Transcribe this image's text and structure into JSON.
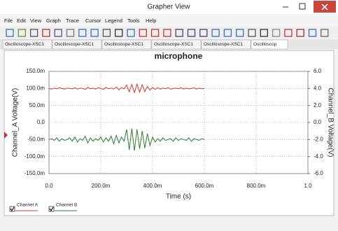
{
  "window": {
    "title": "Grapher View"
  },
  "menu": [
    "File",
    "Edit",
    "View",
    "Graph",
    "Trace",
    "Cursor",
    "Legend",
    "Tools",
    "Help"
  ],
  "tabs": [
    "Oscilloscope-XSC1",
    "Oscilloscope-XSC1",
    "Oscilloscope-XSC1",
    "Oscilloscope-XSC1",
    "Oscilloscope-XSC1",
    "Oscilloscop"
  ],
  "chart_data": {
    "type": "line",
    "title": "microphone",
    "x_label": "Time (s)",
    "y_label": "Channel_A Voltage(V)",
    "y2_label": "Channel_B Voltage(V)",
    "x": [
      0,
      0.01,
      0.02,
      0.03,
      0.04,
      0.05,
      0.06,
      0.07,
      0.08,
      0.09,
      0.1,
      0.11,
      0.12,
      0.13,
      0.14,
      0.15,
      0.16,
      0.17,
      0.18,
      0.19,
      0.2,
      0.21,
      0.22,
      0.23,
      0.24,
      0.25,
      0.26,
      0.27,
      0.28,
      0.29,
      0.3,
      0.31,
      0.32,
      0.33,
      0.34,
      0.35,
      0.36,
      0.37,
      0.38,
      0.39,
      0.4,
      0.41,
      0.42,
      0.43,
      0.44,
      0.45,
      0.46,
      0.47,
      0.48,
      0.49,
      0.5,
      0.51,
      0.52,
      0.53,
      0.54,
      0.55,
      0.56,
      0.57,
      0.58,
      0.59,
      0.6
    ],
    "series": [
      {
        "name": "Channel A",
        "color": "#d03a2c",
        "values": [
          0.1,
          0.098,
          0.101,
          0.099,
          0.102,
          0.1,
          0.098,
          0.101,
          0.1,
          0.099,
          0.102,
          0.098,
          0.101,
          0.1,
          0.097,
          0.103,
          0.099,
          0.101,
          0.098,
          0.102,
          0.1,
          0.097,
          0.103,
          0.099,
          0.101,
          0.098,
          0.104,
          0.096,
          0.102,
          0.099,
          0.11,
          0.09,
          0.112,
          0.088,
          0.113,
          0.089,
          0.111,
          0.091,
          0.106,
          0.095,
          0.103,
          0.097,
          0.102,
          0.098,
          0.101,
          0.099,
          0.102,
          0.098,
          0.1,
          0.101,
          0.099,
          0.102,
          0.098,
          0.101,
          0.099,
          0.1,
          0.102,
          0.098,
          0.101,
          0.099,
          0.1
        ]
      },
      {
        "name": "Channel B",
        "color": "#2e7d32",
        "axis": "y2",
        "values": [
          -2.0,
          -1.9,
          -2.1,
          -1.8,
          -2.2,
          -1.9,
          -2.1,
          -2.0,
          -1.8,
          -2.2,
          -1.7,
          -2.3,
          -1.9,
          -2.1,
          -1.6,
          -2.4,
          -1.8,
          -2.2,
          -1.9,
          -2.1,
          -1.7,
          -2.3,
          -1.8,
          -2.2,
          -1.6,
          -2.5,
          -1.5,
          -2.4,
          -1.7,
          -2.2,
          -0.8,
          -3.2,
          -0.7,
          -3.3,
          -0.8,
          -3.1,
          -1.0,
          -3.0,
          -1.3,
          -2.7,
          -1.7,
          -2.3,
          -1.9,
          -2.2,
          -1.8,
          -2.1,
          -2.0,
          -1.9,
          -2.2,
          -1.8,
          -2.1,
          -1.9,
          -2.0,
          -2.1,
          -1.8,
          -2.2,
          -1.9,
          -2.0,
          -2.1,
          -1.9,
          -2.0
        ]
      }
    ],
    "xlim": [
      0,
      1
    ],
    "xticks": [
      {
        "value": 0,
        "label": "0.0"
      },
      {
        "value": 0.2,
        "label": "200.0m"
      },
      {
        "value": 0.4,
        "label": "400.0m"
      },
      {
        "value": 0.6,
        "label": "600.0m"
      },
      {
        "value": 0.8,
        "label": "800.0m"
      },
      {
        "value": 1,
        "label": "1.0"
      }
    ],
    "ylim": [
      -0.15,
      0.15
    ],
    "yticks": [
      {
        "value": 0.15,
        "label": "150.0m"
      },
      {
        "value": 0.1,
        "label": "100.0m"
      },
      {
        "value": 0.05,
        "label": "50.0m"
      },
      {
        "value": 0,
        "label": "0.0"
      },
      {
        "value": -0.05,
        "label": "-50.0m"
      },
      {
        "value": -0.1,
        "label": "-100.0m"
      },
      {
        "value": -0.15,
        "label": "-150.0m"
      }
    ],
    "y2lim": [
      -6,
      6
    ],
    "y2ticks": [
      {
        "value": 6,
        "label": "6.0"
      },
      {
        "value": 4,
        "label": "4.0"
      },
      {
        "value": 2,
        "label": "2.0"
      },
      {
        "value": 0,
        "label": "0.0"
      },
      {
        "value": -2,
        "label": "-2.0"
      },
      {
        "value": -4,
        "label": "-4.0"
      },
      {
        "value": -6,
        "label": "-6.0"
      }
    ],
    "grid": true,
    "legend": "bottom-left"
  }
}
